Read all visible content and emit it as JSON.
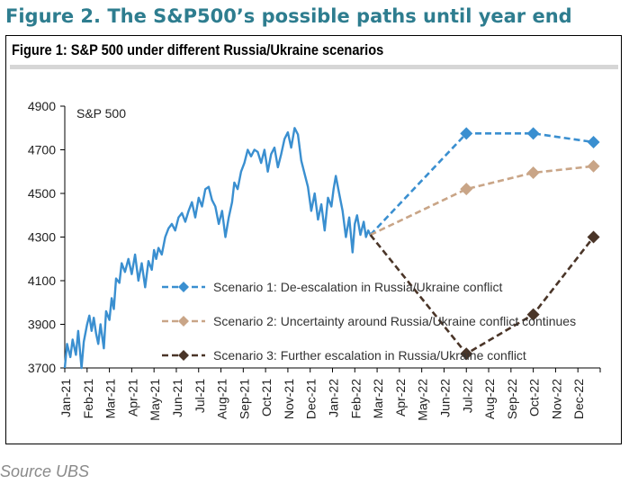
{
  "page": {
    "outer_title": "Figure 2. The S&P500’s possible paths until year end",
    "source": "Source UBS"
  },
  "chart_data": {
    "type": "line",
    "title": "Figure 1: S&P 500 under different Russia/Ukraine scenarios",
    "series_label": "S&P 500",
    "xlabel": "",
    "ylabel": "",
    "ylim": [
      3700,
      4900
    ],
    "yticks": [
      3700,
      3900,
      4100,
      4300,
      4500,
      4700,
      4900
    ],
    "xticks": [
      "Jan-21",
      "Feb-21",
      "Mar-21",
      "Apr-21",
      "May-21",
      "Jun-21",
      "Jul-21",
      "Aug-21",
      "Sep-21",
      "Oct-21",
      "Nov-21",
      "Dec-21",
      "Jan-22",
      "Feb-22",
      "Mar-22",
      "Apr-22",
      "May-22",
      "Jun-22",
      "Jul-22",
      "Aug-22",
      "Sep-22",
      "Oct-22",
      "Nov-22",
      "Dec-22"
    ],
    "grid": false,
    "history": {
      "name": "S&P 500",
      "color": "#3a8fd0",
      "x": [
        0,
        0.1,
        0.25,
        0.35,
        0.5,
        0.6,
        0.75,
        0.85,
        1.0,
        1.1,
        1.2,
        1.3,
        1.4,
        1.5,
        1.6,
        1.75,
        1.85,
        2.0,
        2.1,
        2.2,
        2.3,
        2.45,
        2.55,
        2.7,
        2.85,
        3.0,
        3.15,
        3.3,
        3.45,
        3.6,
        3.75,
        3.9,
        4.0,
        4.1,
        4.2,
        4.35,
        4.5,
        4.65,
        4.8,
        4.95,
        5.1,
        5.25,
        5.4,
        5.55,
        5.7,
        5.85,
        6.0,
        6.15,
        6.3,
        6.45,
        6.6,
        6.75,
        6.9,
        7.05,
        7.2,
        7.35,
        7.5,
        7.6,
        7.75,
        7.9,
        8.05,
        8.2,
        8.35,
        8.5,
        8.65,
        8.8,
        8.95,
        9.1,
        9.25,
        9.4,
        9.55,
        9.7,
        9.85,
        10.0,
        10.15,
        10.3,
        10.45,
        10.6,
        10.75,
        10.9,
        11.05,
        11.2,
        11.35,
        11.5,
        11.65,
        11.8,
        11.95,
        12.05,
        12.15,
        12.3,
        12.45,
        12.6,
        12.75,
        12.9,
        13.0,
        13.1,
        13.25,
        13.4,
        13.5,
        13.6,
        13.7
      ],
      "y": [
        3700,
        3810,
        3750,
        3830,
        3760,
        3870,
        3700,
        3820,
        3900,
        3940,
        3870,
        3930,
        3860,
        3810,
        3900,
        3790,
        3960,
        3920,
        4020,
        3970,
        4110,
        4090,
        4180,
        4140,
        4200,
        4130,
        4220,
        4100,
        4180,
        4070,
        4190,
        4150,
        4240,
        4200,
        4250,
        4220,
        4300,
        4340,
        4360,
        4330,
        4390,
        4410,
        4370,
        4420,
        4460,
        4390,
        4480,
        4440,
        4520,
        4530,
        4470,
        4440,
        4360,
        4420,
        4300,
        4390,
        4460,
        4550,
        4520,
        4600,
        4640,
        4700,
        4670,
        4700,
        4690,
        4640,
        4700,
        4600,
        4680,
        4710,
        4620,
        4680,
        4750,
        4780,
        4710,
        4800,
        4770,
        4650,
        4590,
        4530,
        4420,
        4500,
        4380,
        4450,
        4330,
        4480,
        4440,
        4520,
        4580,
        4500,
        4420,
        4300,
        4390,
        4230,
        4360,
        4400,
        4310,
        4370,
        4300,
        4330,
        4310
      ]
    },
    "scenarios": [
      {
        "name": "Scenario 1: De-escalation in Russia/Ukraine conflict",
        "color": "#3a8fd0",
        "x": [
          13.7,
          18,
          21,
          23.7
        ],
        "y": [
          4310,
          4775,
          4775,
          4735
        ]
      },
      {
        "name": "Scenario 2: Uncertainty around Russia/Ukraine conflict continues",
        "color": "#c9a587",
        "x": [
          13.7,
          18,
          21,
          23.7
        ],
        "y": [
          4310,
          4520,
          4595,
          4625
        ]
      },
      {
        "name": "Scenario 3: Further escalation in Russia/Ukraine conflict",
        "color": "#4a3528",
        "x": [
          13.7,
          18,
          21,
          23.7
        ],
        "y": [
          4310,
          3765,
          3945,
          4300
        ]
      }
    ]
  }
}
